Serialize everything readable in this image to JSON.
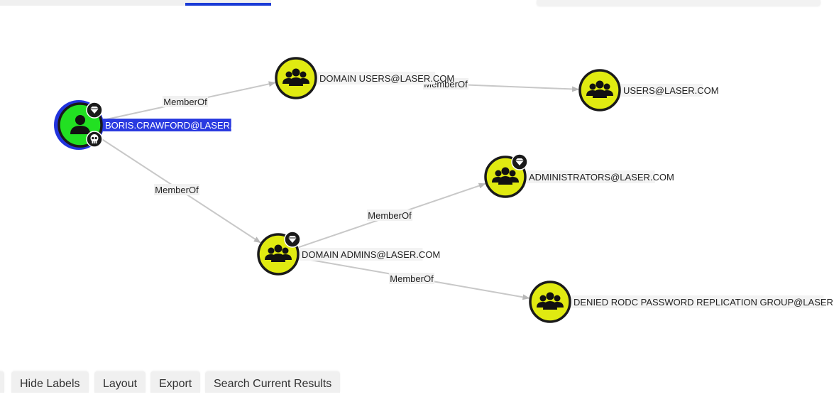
{
  "graph": {
    "nodes": [
      {
        "id": "boris",
        "label": "BORIS.CRAWFORD@LASER.COM",
        "type": "user",
        "selected": true,
        "badges": [
          "diamond",
          "skull"
        ]
      },
      {
        "id": "domain_users",
        "label": "DOMAIN USERS@LASER.COM",
        "type": "group",
        "badges": []
      },
      {
        "id": "users",
        "label": "USERS@LASER.COM",
        "type": "group",
        "badges": []
      },
      {
        "id": "administrators",
        "label": "ADMINISTRATORS@LASER.COM",
        "type": "group",
        "badges": [
          "diamond"
        ]
      },
      {
        "id": "domain_admins",
        "label": "DOMAIN ADMINS@LASER.COM",
        "type": "group",
        "badges": [
          "diamond"
        ]
      },
      {
        "id": "denied_rodc",
        "label": "DENIED RODC PASSWORD REPLICATION GROUP@LASER.COM",
        "type": "group",
        "badges": []
      }
    ],
    "edges": [
      {
        "source": "boris",
        "target": "domain_users",
        "label": "MemberOf"
      },
      {
        "source": "boris",
        "target": "domain_admins",
        "label": "MemberOf"
      },
      {
        "source": "domain_users",
        "target": "users",
        "label": "MemberOf"
      },
      {
        "source": "domain_admins",
        "target": "administrators",
        "label": "MemberOf"
      },
      {
        "source": "domain_admins",
        "target": "denied_rodc",
        "label": "MemberOf"
      }
    ]
  },
  "colors": {
    "user_node": "#22e022",
    "group_node": "#e0ea11",
    "selection_ring": "#2233dd",
    "node_outline": "#1a1a1a",
    "edge": "#c8c8c8",
    "accent": "#1a3bd6"
  },
  "icons": {
    "user": "user-icon",
    "group": "group-icon",
    "diamond": "diamond-badge-icon",
    "skull": "skull-badge-icon"
  },
  "toolbar": {
    "hide_labels": "Hide Labels",
    "layout": "Layout",
    "export": "Export",
    "search_current_results": "Search Current Results"
  }
}
